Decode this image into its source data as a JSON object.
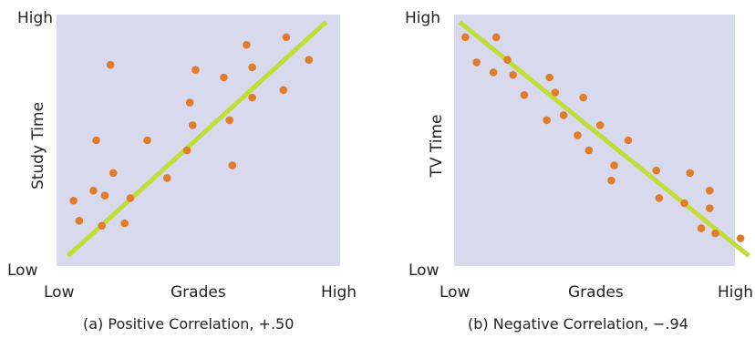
{
  "chart_data": [
    {
      "type": "scatter",
      "caption": "(a) Positive Correlation, +.50",
      "xlabel": "Grades",
      "ylabel": "Study Time",
      "x_ticks": [
        "Low",
        "High"
      ],
      "y_ticks": [
        "Low",
        "High"
      ],
      "xlim": [
        0,
        1
      ],
      "ylim": [
        0,
        1
      ],
      "grid": false,
      "colors": {
        "background": "#d9d9ee",
        "points": "#e07d2a",
        "trend": "#c2dc3a"
      },
      "points": [
        [
          0.06,
          0.26
        ],
        [
          0.08,
          0.18
        ],
        [
          0.13,
          0.3
        ],
        [
          0.14,
          0.5
        ],
        [
          0.16,
          0.16
        ],
        [
          0.17,
          0.28
        ],
        [
          0.19,
          0.8
        ],
        [
          0.2,
          0.37
        ],
        [
          0.24,
          0.17
        ],
        [
          0.26,
          0.27
        ],
        [
          0.32,
          0.5
        ],
        [
          0.39,
          0.35
        ],
        [
          0.46,
          0.46
        ],
        [
          0.47,
          0.65
        ],
        [
          0.48,
          0.56
        ],
        [
          0.49,
          0.78
        ],
        [
          0.59,
          0.75
        ],
        [
          0.61,
          0.58
        ],
        [
          0.62,
          0.4
        ],
        [
          0.67,
          0.88
        ],
        [
          0.69,
          0.79
        ],
        [
          0.69,
          0.67
        ],
        [
          0.8,
          0.7
        ],
        [
          0.81,
          0.91
        ],
        [
          0.89,
          0.82
        ]
      ],
      "trend": [
        [
          0.04,
          0.04
        ],
        [
          0.95,
          0.97
        ]
      ]
    },
    {
      "type": "scatter",
      "caption": "(b) Negative Correlation, −.94",
      "xlabel": "Grades",
      "ylabel": "TV Time",
      "x_ticks": [
        "Low",
        "High"
      ],
      "y_ticks": [
        "Low",
        "High"
      ],
      "xlim": [
        0,
        1
      ],
      "ylim": [
        0,
        1
      ],
      "grid": false,
      "colors": {
        "background": "#d9d9ee",
        "points": "#e07d2a",
        "trend": "#c2dc3a"
      },
      "points": [
        [
          0.04,
          0.91
        ],
        [
          0.08,
          0.81
        ],
        [
          0.14,
          0.77
        ],
        [
          0.15,
          0.91
        ],
        [
          0.19,
          0.82
        ],
        [
          0.21,
          0.76
        ],
        [
          0.25,
          0.68
        ],
        [
          0.33,
          0.58
        ],
        [
          0.34,
          0.75
        ],
        [
          0.36,
          0.69
        ],
        [
          0.39,
          0.6
        ],
        [
          0.44,
          0.52
        ],
        [
          0.46,
          0.67
        ],
        [
          0.48,
          0.46
        ],
        [
          0.52,
          0.56
        ],
        [
          0.56,
          0.34
        ],
        [
          0.57,
          0.4
        ],
        [
          0.62,
          0.5
        ],
        [
          0.72,
          0.38
        ],
        [
          0.73,
          0.27
        ],
        [
          0.82,
          0.25
        ],
        [
          0.84,
          0.37
        ],
        [
          0.88,
          0.15
        ],
        [
          0.91,
          0.3
        ],
        [
          0.91,
          0.23
        ],
        [
          0.93,
          0.13
        ],
        [
          1.02,
          0.11
        ]
      ],
      "trend": [
        [
          0.02,
          0.97
        ],
        [
          1.05,
          0.04
        ]
      ]
    }
  ]
}
